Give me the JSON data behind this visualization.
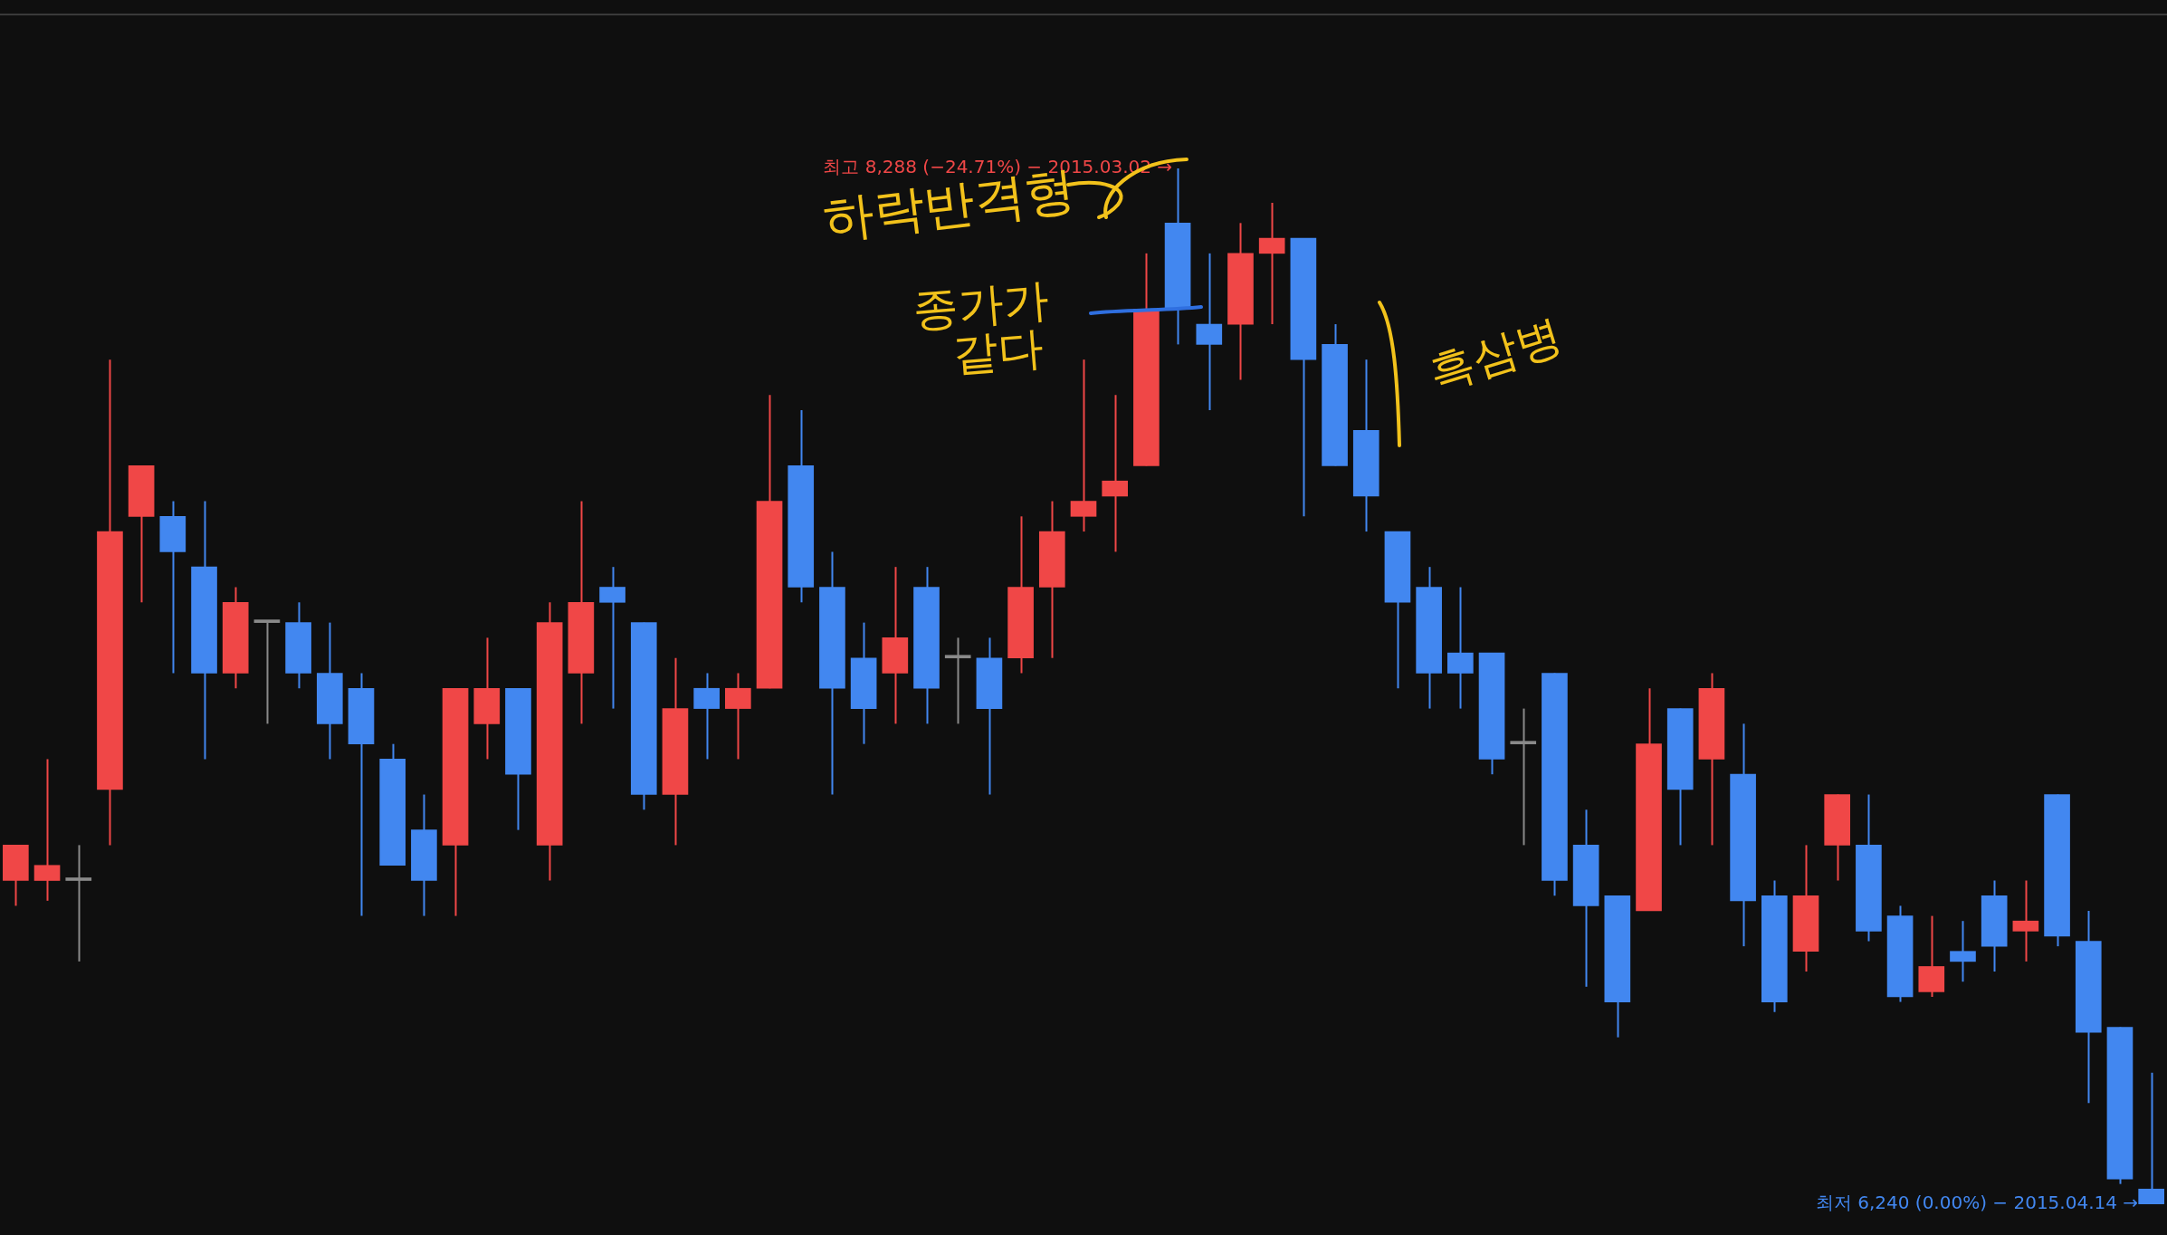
{
  "chart_data": {
    "type": "candlestick",
    "categories": [
      null,
      null,
      null,
      null,
      null,
      null,
      null,
      null,
      null,
      null,
      null,
      null,
      null,
      null,
      null,
      null,
      null,
      null,
      null,
      null,
      null,
      null,
      null,
      null,
      null,
      null,
      null,
      null,
      null,
      null,
      null,
      null,
      null,
      null,
      null,
      null,
      null,
      null,
      null,
      null,
      null,
      null,
      null,
      null,
      null,
      null,
      null,
      null,
      null,
      null,
      null,
      null,
      null,
      null,
      null,
      null,
      null,
      null,
      null,
      null,
      null,
      null,
      null,
      null,
      null,
      null,
      null,
      null,
      null
    ],
    "ohlc": [
      [
        6880,
        6950,
        6830,
        6950
      ],
      [
        6880,
        7120,
        6840,
        6910
      ],
      [
        6880,
        6950,
        6720,
        6880
      ],
      [
        7060,
        7910,
        6950,
        7570
      ],
      [
        7600,
        7700,
        7430,
        7700
      ],
      [
        7600,
        7630,
        7290,
        7530
      ],
      [
        7500,
        7630,
        7120,
        7290
      ],
      [
        7290,
        7460,
        7260,
        7430
      ],
      [
        7390,
        7390,
        7190,
        7390
      ],
      [
        7390,
        7430,
        7260,
        7290
      ],
      [
        7290,
        7390,
        7120,
        7190
      ],
      [
        7260,
        7290,
        6810,
        7150
      ],
      [
        7120,
        7150,
        6910,
        6910
      ],
      [
        6980,
        7050,
        6810,
        6880
      ],
      [
        6950,
        7260,
        6810,
        7260
      ],
      [
        7190,
        7360,
        7120,
        7260
      ],
      [
        7260,
        7260,
        6980,
        7090
      ],
      [
        6950,
        7430,
        6880,
        7390
      ],
      [
        7290,
        7630,
        7190,
        7430
      ],
      [
        7460,
        7500,
        7220,
        7430
      ],
      [
        7390,
        7390,
        7020,
        7050
      ],
      [
        7050,
        7320,
        6950,
        7220
      ],
      [
        7260,
        7290,
        7120,
        7220
      ],
      [
        7220,
        7290,
        7120,
        7260
      ],
      [
        7260,
        7840,
        7260,
        7630
      ],
      [
        7700,
        7810,
        7430,
        7460
      ],
      [
        7460,
        7530,
        7050,
        7260
      ],
      [
        7320,
        7390,
        7150,
        7220
      ],
      [
        7290,
        7500,
        7190,
        7360
      ],
      [
        7460,
        7500,
        7190,
        7260
      ],
      [
        7320,
        7360,
        7190,
        7320
      ],
      [
        7320,
        7360,
        7050,
        7220
      ],
      [
        7320,
        7600,
        7290,
        7460
      ],
      [
        7460,
        7630,
        7320,
        7570
      ],
      [
        7600,
        7910,
        7570,
        7630
      ],
      [
        7640,
        7840,
        7530,
        7670
      ],
      [
        7700,
        8120,
        7700,
        8010
      ],
      [
        8180,
        8288,
        7940,
        8010
      ],
      [
        7980,
        8120,
        7810,
        7940
      ],
      [
        7980,
        8180,
        7870,
        8120
      ],
      [
        8120,
        8220,
        7980,
        8150
      ],
      [
        8150,
        8150,
        7600,
        7910
      ],
      [
        7940,
        7980,
        7700,
        7700
      ],
      [
        7770,
        7910,
        7570,
        7640
      ],
      [
        7570,
        7570,
        7260,
        7430
      ],
      [
        7460,
        7500,
        7220,
        7290
      ],
      [
        7330,
        7460,
        7220,
        7290
      ],
      [
        7330,
        7330,
        7090,
        7120
      ],
      [
        7150,
        7220,
        6950,
        7150
      ],
      [
        7290,
        7290,
        6850,
        6880
      ],
      [
        6950,
        7020,
        6670,
        6830
      ],
      [
        6850,
        6850,
        6570,
        6640
      ],
      [
        6820,
        7260,
        6820,
        7150
      ],
      [
        7220,
        7220,
        6950,
        7060
      ],
      [
        7120,
        7290,
        6950,
        7260
      ],
      [
        7090,
        7190,
        6750,
        6840
      ],
      [
        6850,
        6880,
        6620,
        6640
      ],
      [
        6740,
        6950,
        6700,
        6850
      ],
      [
        6950,
        7050,
        6880,
        7050
      ],
      [
        6950,
        7050,
        6760,
        6780
      ],
      [
        6810,
        6830,
        6640,
        6650
      ],
      [
        6660,
        6810,
        6650,
        6710
      ],
      [
        6740,
        6800,
        6680,
        6720
      ],
      [
        6850,
        6880,
        6700,
        6750
      ],
      [
        6780,
        6880,
        6720,
        6800
      ],
      [
        7050,
        7050,
        6750,
        6770
      ],
      [
        6760,
        6820,
        6440,
        6580
      ],
      [
        6590,
        6590,
        6280,
        6290
      ],
      [
        6270,
        6500,
        6240,
        6240
      ]
    ],
    "colors": [
      "#f04747",
      "#f04747",
      "#8a8a8a",
      "#f04747",
      "#f04747",
      "#4287f0",
      "#4287f0",
      "#f04747",
      "#8a8a8a",
      "#4287f0",
      "#4287f0",
      "#4287f0",
      "#4287f0",
      "#4287f0",
      "#f04747",
      "#f04747",
      "#4287f0",
      "#f04747",
      "#f04747",
      "#4287f0",
      "#4287f0",
      "#f04747",
      "#4287f0",
      "#f04747",
      "#f04747",
      "#4287f0",
      "#4287f0",
      "#4287f0",
      "#f04747",
      "#4287f0",
      "#8a8a8a",
      "#4287f0",
      "#f04747",
      "#f04747",
      "#f04747",
      "#f04747",
      "#f04747",
      "#4287f0",
      "#4287f0",
      "#f04747",
      "#f04747",
      "#4287f0",
      "#4287f0",
      "#4287f0",
      "#4287f0",
      "#4287f0",
      "#4287f0",
      "#4287f0",
      "#8a8a8a",
      "#4287f0",
      "#4287f0",
      "#4287f0",
      "#f04747",
      "#4287f0",
      "#f04747",
      "#4287f0",
      "#4287f0",
      "#f04747",
      "#f04747",
      "#4287f0",
      "#4287f0",
      "#f04747",
      "#4287f0",
      "#4287f0",
      "#f04747",
      "#4287f0",
      "#4287f0",
      "#4287f0",
      "#4287f0"
    ],
    "annotations": [
      "최고 8,288 (−24.71%) − 2015.03.02 →",
      "최저 6,240 (0.00%) − 2015.04.14 →",
      "하락반격형",
      "종가가 같다",
      "흑삼병"
    ],
    "legend": false
  }
}
